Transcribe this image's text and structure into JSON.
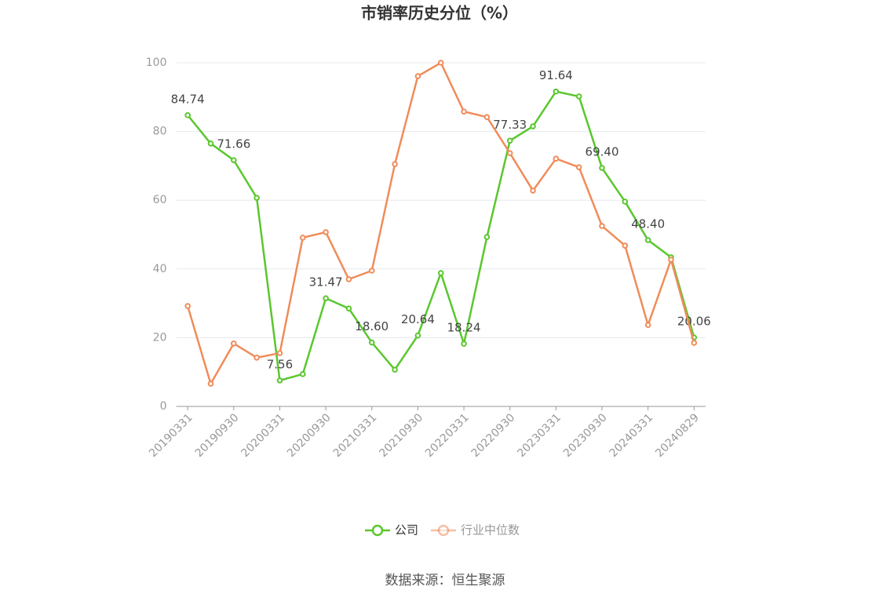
{
  "chart_data": {
    "type": "line",
    "title": "市销率历史分位（%）",
    "categories": [
      "20190331",
      null,
      "20190930",
      null,
      "20200331",
      null,
      "20200930",
      null,
      "20210331",
      null,
      "20210930",
      null,
      "20220331",
      null,
      "20220930",
      null,
      "20230331",
      null,
      "20230930",
      null,
      "20240331",
      null,
      "20240829"
    ],
    "series": [
      {
        "name": "公司",
        "color": "#5ac72e",
        "values": [
          84.74,
          76.5,
          71.66,
          60.7,
          7.56,
          9.4,
          31.47,
          28.5,
          18.6,
          10.7,
          20.64,
          38.8,
          18.24,
          49.3,
          77.33,
          81.5,
          91.64,
          90.2,
          69.4,
          59.6,
          48.4,
          43.4,
          20.06
        ],
        "value_labels": [
          "84.74",
          null,
          "71.66",
          null,
          "7.56",
          null,
          "31.47",
          null,
          "18.60",
          null,
          "20.64",
          null,
          "18.24",
          null,
          "77.33",
          null,
          "91.64",
          null,
          "69.40",
          null,
          "48.40",
          null,
          "20.06"
        ]
      },
      {
        "name": "行业中位数",
        "color": "#f08c5a",
        "values": [
          29.2,
          6.6,
          18.3,
          14.2,
          15.5,
          49.1,
          50.7,
          37.0,
          39.5,
          70.5,
          96.1,
          100,
          85.8,
          84.2,
          73.7,
          62.8,
          72.1,
          69.6,
          52.5,
          46.8,
          23.7,
          42.7,
          18.5
        ]
      }
    ],
    "ylim": [
      0,
      100
    ],
    "yticks": [
      0,
      20,
      40,
      60,
      80,
      100
    ],
    "grid": true,
    "legend": "bottom",
    "source": "数据来源：恒生聚源"
  }
}
